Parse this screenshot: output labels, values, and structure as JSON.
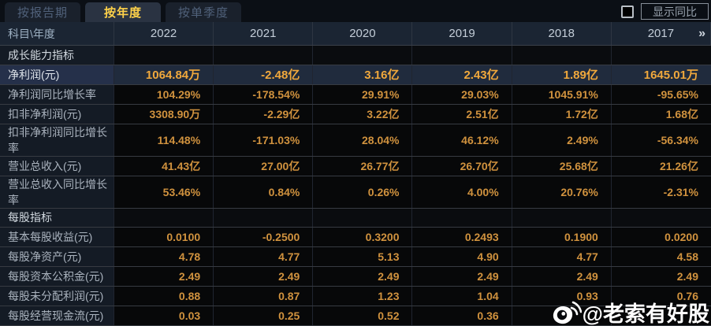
{
  "tabs": [
    {
      "label": "按报告期",
      "selected": false
    },
    {
      "label": "按年度",
      "selected": true
    },
    {
      "label": "按单季度",
      "selected": false
    }
  ],
  "controls": {
    "yoy_checkbox_checked": false,
    "show_yoy_label": "显示同比"
  },
  "table": {
    "corner_label": "科目\\年度",
    "years": [
      "2022",
      "2021",
      "2020",
      "2019",
      "2018",
      "2017"
    ],
    "more_icon": "»",
    "rows": [
      {
        "type": "section",
        "label": "成长能力指标",
        "values": [
          "",
          "",
          "",
          "",
          "",
          ""
        ]
      },
      {
        "type": "data",
        "highlight": true,
        "label": "净利润(元)",
        "values": [
          "1064.84万",
          "-2.48亿",
          "3.16亿",
          "2.43亿",
          "1.89亿",
          "1645.01万"
        ]
      },
      {
        "type": "data",
        "highlight": false,
        "label": "净利润同比增长率",
        "values": [
          "104.29%",
          "-178.54%",
          "29.91%",
          "29.03%",
          "1045.91%",
          "-95.65%"
        ]
      },
      {
        "type": "data",
        "highlight": false,
        "label": "扣非净利润(元)",
        "values": [
          "3308.90万",
          "-2.29亿",
          "3.22亿",
          "2.51亿",
          "1.72亿",
          "1.68亿"
        ]
      },
      {
        "type": "data",
        "highlight": false,
        "label": "扣非净利润同比增长率",
        "values": [
          "114.48%",
          "-171.03%",
          "28.04%",
          "46.12%",
          "2.49%",
          "-56.34%"
        ]
      },
      {
        "type": "data",
        "highlight": false,
        "label": "营业总收入(元)",
        "values": [
          "41.43亿",
          "27.00亿",
          "26.77亿",
          "26.70亿",
          "25.68亿",
          "21.26亿"
        ]
      },
      {
        "type": "data",
        "highlight": false,
        "label": "营业总收入同比增长率",
        "values": [
          "53.46%",
          "0.84%",
          "0.26%",
          "4.00%",
          "20.76%",
          "-2.31%"
        ]
      },
      {
        "type": "section",
        "label": "每股指标",
        "values": [
          "",
          "",
          "",
          "",
          "",
          ""
        ]
      },
      {
        "type": "data",
        "highlight": false,
        "label": "基本每股收益(元)",
        "values": [
          "0.0100",
          "-0.2500",
          "0.3200",
          "0.2493",
          "0.1900",
          "0.0200"
        ]
      },
      {
        "type": "data",
        "highlight": false,
        "label": "每股净资产(元)",
        "values": [
          "4.78",
          "4.77",
          "5.13",
          "4.90",
          "4.77",
          "4.58"
        ]
      },
      {
        "type": "data",
        "highlight": false,
        "label": "每股资本公积金(元)",
        "values": [
          "2.49",
          "2.49",
          "2.49",
          "2.49",
          "2.49",
          "2.49"
        ]
      },
      {
        "type": "data",
        "highlight": false,
        "label": "每股未分配利润(元)",
        "values": [
          "0.88",
          "0.87",
          "1.23",
          "1.04",
          "0.93",
          "0.76"
        ]
      },
      {
        "type": "data",
        "highlight": false,
        "label": "每股经营现金流(元)",
        "values": [
          "0.03",
          "0.25",
          "0.52",
          "0.36",
          "",
          ""
        ]
      }
    ]
  },
  "watermark": {
    "icon": "weibo-icon",
    "text": "@老索有好股"
  },
  "colors": {
    "value_gold": "#d0923e",
    "highlight_value_gold": "#f0a83c",
    "tab_selected_text": "#ffd24a",
    "highlight_row_bg": "#202b3d",
    "header_bg": "#1b2533",
    "label_col_bg": "#141b25"
  }
}
